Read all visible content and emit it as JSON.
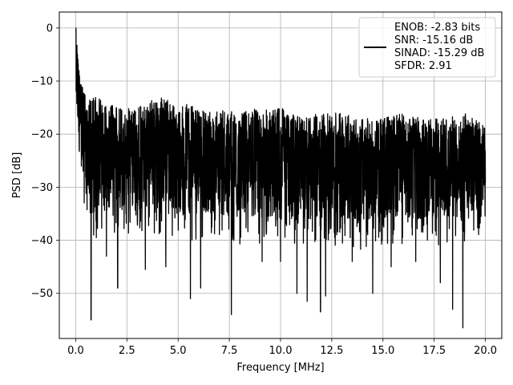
{
  "chart_data": {
    "type": "line",
    "title": "",
    "xlabel": "Frequency [MHz]",
    "ylabel": "PSD [dB]",
    "xlim": [
      -0.8,
      20.8
    ],
    "ylim": [
      -58.5,
      3
    ],
    "x_ticks": [
      0.0,
      2.5,
      5.0,
      7.5,
      10.0,
      12.5,
      15.0,
      17.5,
      20.0
    ],
    "x_tick_labels": [
      "0.0",
      "2.5",
      "5.0",
      "7.5",
      "10.0",
      "12.5",
      "15.0",
      "17.5",
      "20.0"
    ],
    "y_ticks": [
      0,
      -10,
      -20,
      -30,
      -40,
      -50
    ],
    "y_tick_labels": [
      "0",
      "−10",
      "−20",
      "−30",
      "−40",
      "−50"
    ],
    "grid": true,
    "legend_position": "top-right",
    "line_color": "#000000",
    "series": [
      {
        "name": "",
        "x": [
          0.0,
          0.05,
          0.1,
          0.15,
          0.2,
          0.3,
          0.4,
          0.5,
          0.6,
          0.7,
          0.74,
          0.8,
          1.0,
          1.4,
          1.8,
          2.0,
          2.5,
          3.0,
          3.5,
          4.0,
          4.5,
          5.0,
          6.0,
          7.0,
          7.6,
          8.0,
          9.0,
          10.0,
          11.0,
          11.9,
          12.0,
          13.0,
          14.0,
          15.0,
          16.0,
          17.0,
          18.0,
          18.9,
          19.5,
          20.0
        ],
        "y": [
          0,
          -8,
          -13,
          -18,
          -22,
          -26,
          -28,
          -30,
          -32,
          -36,
          -55,
          -30,
          -40,
          -43,
          -35,
          -49,
          -40,
          -38,
          -45,
          -38,
          -45,
          -42,
          -51,
          -47,
          -54,
          -46,
          -44,
          -42,
          -50,
          -53.5,
          -52,
          -44,
          -40,
          -46,
          -43,
          -45,
          -44,
          -56.5,
          -40,
          -30
        ]
      }
    ],
    "noise_envelope": {
      "x": [
        0.0,
        0.3,
        0.6,
        1.0,
        2.0,
        3.0,
        4.0,
        5.0,
        6.0,
        7.0,
        8.0,
        9.0,
        10.0,
        11.0,
        12.0,
        13.0,
        14.0,
        15.0,
        16.0,
        17.0,
        18.0,
        19.0,
        20.0
      ],
      "upper": [
        0,
        -11,
        -13,
        -13,
        -15,
        -15,
        -13,
        -14,
        -15,
        -15,
        -16,
        -15,
        -15,
        -17,
        -16,
        -16,
        -17,
        -17,
        -16,
        -17,
        -17,
        -16,
        -18
      ],
      "typical_low": [
        -13,
        -28,
        -33,
        -35,
        -34,
        -34,
        -34,
        -35,
        -35,
        -35,
        -36,
        -36,
        -36,
        -36,
        -36,
        -36,
        -37,
        -36,
        -36,
        -36,
        -36,
        -36,
        -33
      ],
      "deep_dips": [
        [
          0.75,
          -55
        ],
        [
          1.5,
          -43
        ],
        [
          2.05,
          -49
        ],
        [
          3.4,
          -45.5
        ],
        [
          4.4,
          -45
        ],
        [
          5.6,
          -51
        ],
        [
          6.1,
          -49
        ],
        [
          7.6,
          -54
        ],
        [
          9.1,
          -44
        ],
        [
          10.0,
          -44
        ],
        [
          10.8,
          -50
        ],
        [
          11.3,
          -51.5
        ],
        [
          11.95,
          -53.5
        ],
        [
          12.2,
          -50.5
        ],
        [
          13.5,
          -44
        ],
        [
          14.5,
          -50
        ],
        [
          15.4,
          -45
        ],
        [
          16.6,
          -44
        ],
        [
          17.8,
          -48
        ],
        [
          18.4,
          -53
        ],
        [
          18.9,
          -56.5
        ]
      ]
    },
    "legend": {
      "position": "top-right",
      "lines": [
        "ENOB: -2.83 bits",
        "SNR: -15.16 dB",
        "SINAD: -15.29 dB",
        "SFDR: 2.91"
      ]
    }
  }
}
